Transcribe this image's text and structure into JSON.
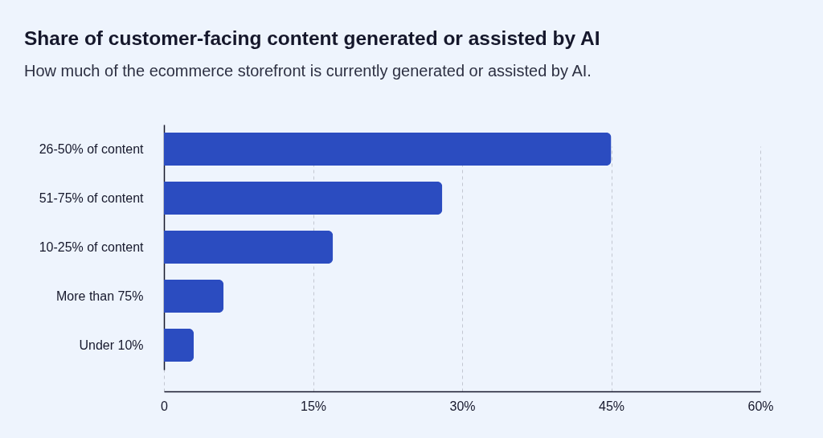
{
  "chart_data": {
    "type": "bar",
    "orientation": "horizontal",
    "title": "Share of customer-facing content generated or assisted by AI",
    "subtitle": "How much of the ecommerce storefront is currently generated or assisted by AI.",
    "categories": [
      "26-50% of content",
      "51-75% of content",
      "10-25% of content",
      "More than 75%",
      "Under 10%"
    ],
    "values": [
      45,
      28,
      17,
      6,
      3
    ],
    "color": "#2b4cc0",
    "xlim": [
      0,
      60
    ],
    "xticks": [
      0,
      {
        "value": 15,
        "label": "15%"
      },
      {
        "value": 30,
        "label": "30%"
      },
      {
        "value": 45,
        "label": "45%"
      },
      {
        "value": 60,
        "label": "60%"
      }
    ],
    "grid": "x"
  }
}
